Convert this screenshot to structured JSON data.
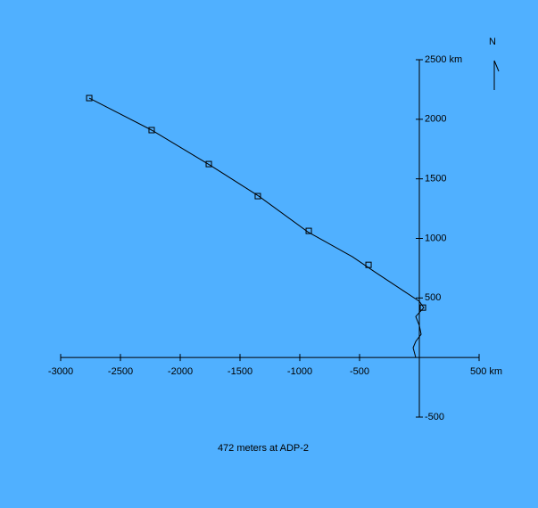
{
  "chart_data": {
    "type": "line",
    "caption": "472 meters at ADP-2",
    "north_label": "N",
    "xlim": [
      -3000,
      500
    ],
    "ylim": [
      -500,
      2500
    ],
    "xticks": [
      -3000,
      -2500,
      -2000,
      -1500,
      -1000,
      -500,
      {
        "value": 500,
        "label": "500 km"
      }
    ],
    "yticks": [
      -500,
      500,
      1000,
      1500,
      2000,
      {
        "value": 2500,
        "label": "2500 km"
      }
    ],
    "series": [
      {
        "color": "#000000",
        "x": [
          -30,
          -52,
          -30,
          15,
          0,
          -30,
          37,
          0,
          -112,
          -373,
          -560,
          -933,
          -1343,
          -1754,
          -2239,
          -2761
        ],
        "values": [
          0,
          82,
          135,
          195,
          269,
          344,
          419,
          472,
          546,
          719,
          846,
          1055,
          1355,
          1617,
          1909,
          2178
        ]
      },
      {
        "color": "#000000",
        "x": [
          30,
          -425,
          -925,
          -1351,
          -1761,
          -2239,
          -2761
        ],
        "values": [
          419,
          778,
          1063,
          1355,
          1624,
          1909,
          2178
        ]
      }
    ]
  }
}
